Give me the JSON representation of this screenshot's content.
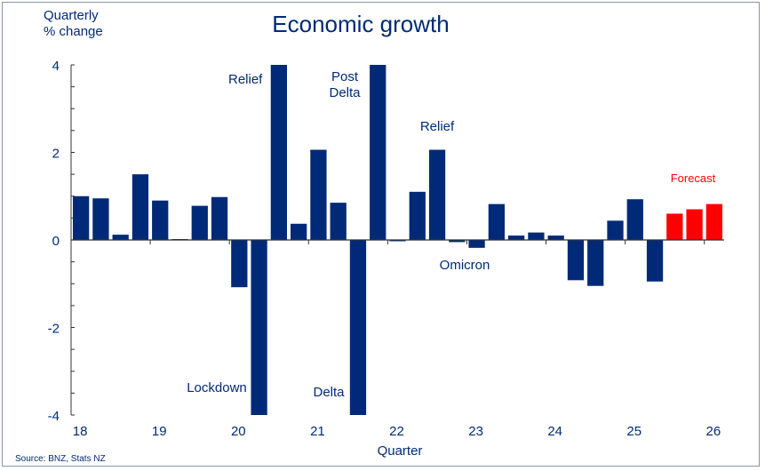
{
  "chart_data": {
    "type": "bar",
    "title": "Economic growth",
    "ylabel": "Quarterly\n% change",
    "xlabel": "Quarter",
    "ylim": [
      -4,
      4
    ],
    "yticks": [
      4,
      2,
      0,
      -2,
      -4
    ],
    "xtick_labels": [
      "18",
      "19",
      "20",
      "21",
      "22",
      "23",
      "24",
      "25",
      "26"
    ],
    "grid": false,
    "series": [
      {
        "values": [
          1.0,
          0.95,
          0.12,
          1.5,
          0.9,
          0.02,
          0.78,
          0.98,
          -1.08,
          -4,
          4,
          0.37,
          2.06,
          0.85,
          -4,
          4,
          -0.03,
          1.1,
          2.06,
          -0.05,
          -0.18,
          0.82,
          0.1,
          0.17,
          0.1,
          -0.92,
          -1.05,
          0.44,
          0.93,
          -0.95
        ],
        "color": "#002a77"
      },
      {
        "name": "Forecast",
        "values": [
          0.6,
          0.7,
          0.82
        ],
        "color": "#ff0000"
      }
    ],
    "annotations": [
      "Relief",
      "Post Delta",
      "Relief",
      "Lockdown",
      "Delta",
      "Omicron",
      "Forecast"
    ],
    "source": "Source: BNZ, Stats NZ"
  }
}
